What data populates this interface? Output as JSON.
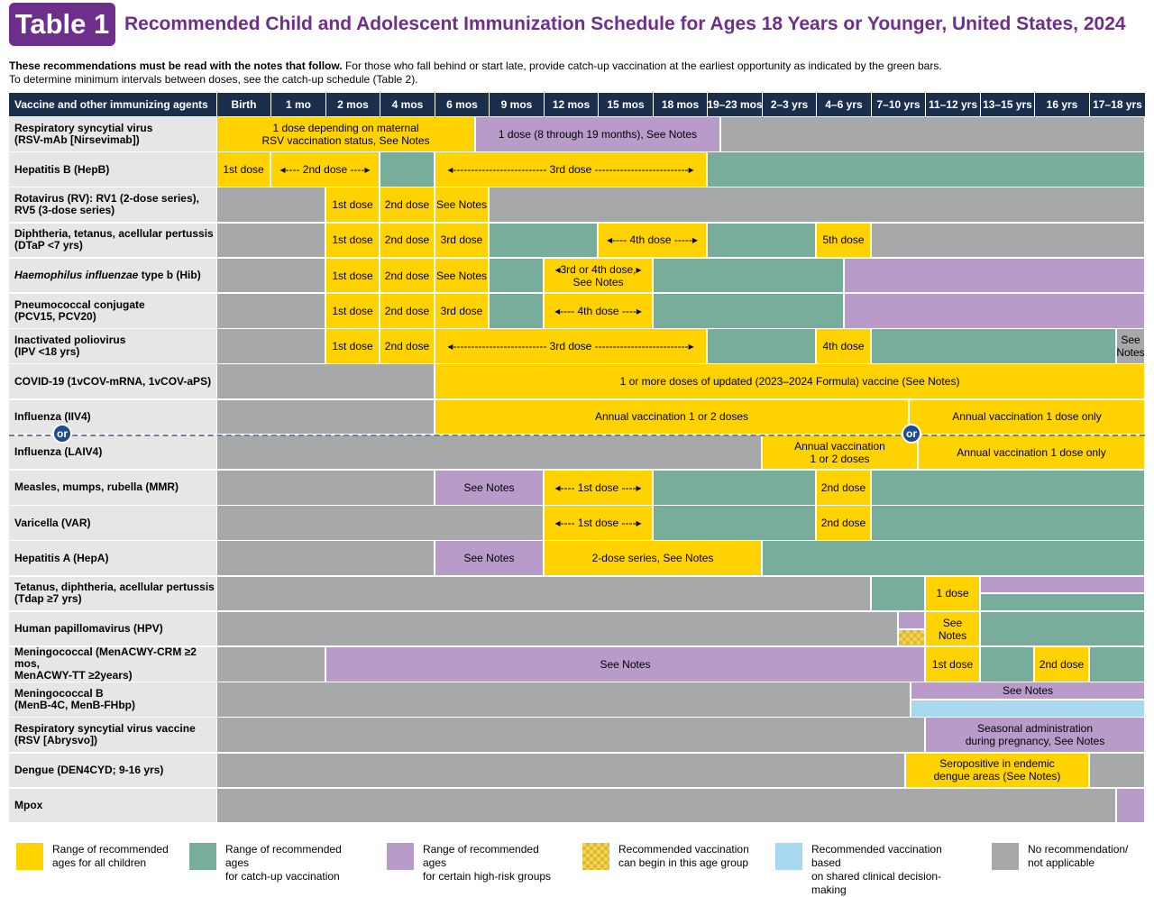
{
  "header": {
    "badge": "Table 1",
    "title": "Recommended Child and Adolescent Immunization Schedule for Ages 18 Years or Younger, United States, 2024"
  },
  "intro": {
    "bold": "These recommendations must be read with the notes that follow.",
    "line1_rest": " For those who fall behind or start late, provide catch-up vaccination at the earliest opportunity as indicated by the green bars.",
    "line2": "To determine minimum intervals between doses, see the catch-up schedule (Table 2)."
  },
  "columns": [
    "Vaccine and other immunizing agents",
    "Birth",
    "1 mo",
    "2 mos",
    "4 mos",
    "6 mos",
    "9 mos",
    "12 mos",
    "15 mos",
    "18 mos",
    "19–23 mos",
    "2–3 yrs",
    "4–6 yrs",
    "7–10 yrs",
    "11–12 yrs",
    "13–15 yrs",
    "16 yrs",
    "17–18 yrs"
  ],
  "colors": {
    "recommended_all": "#ffd200",
    "catch_up": "#79ad9b",
    "high_risk": "#b89bc9",
    "shared_decision": "#a8d8f0",
    "no_recommendation": "#a7a8aa",
    "header_bg": "#1b2f4d",
    "title_purple": "#6d2e8c"
  },
  "or_label": "or",
  "rows": [
    {
      "name": "Respiratory syncytial virus",
      "name2": "(RSV-mAb [Nirsevimab])",
      "segments": [
        {
          "k": "y",
          "text": "1 dose depending on maternal",
          "text2": "RSV vaccination status, See Notes"
        },
        {
          "k": "p",
          "text": "1 dose (8 through 19 months), See Notes"
        },
        {
          "k": "n"
        }
      ]
    },
    {
      "name": "Hepatitis B (HepB)",
      "segments": [
        {
          "k": "y",
          "text": "1st dose"
        },
        {
          "k": "y",
          "text": "◂---- 2nd dose ----▸"
        },
        {
          "k": "g"
        },
        {
          "k": "y",
          "text": "◂-------------------------- 3rd dose --------------------------▸"
        },
        {
          "k": "g"
        }
      ]
    },
    {
      "name": "Rotavirus (RV): RV1 (2-dose series),",
      "name2": "RV5 (3-dose series)",
      "segments": [
        {
          "k": "n"
        },
        {
          "k": "y",
          "text": "1st dose"
        },
        {
          "k": "y",
          "text": "2nd dose"
        },
        {
          "k": "y",
          "text": "See Notes"
        },
        {
          "k": "n"
        }
      ]
    },
    {
      "name": "Diphtheria, tetanus, acellular pertussis",
      "name2": "(DTaP <7 yrs)",
      "segments": [
        {
          "k": "n"
        },
        {
          "k": "y",
          "text": "1st dose"
        },
        {
          "k": "y",
          "text": "2nd dose"
        },
        {
          "k": "y",
          "text": "3rd dose"
        },
        {
          "k": "g"
        },
        {
          "k": "y",
          "text": "◂---- 4th dose -----▸"
        },
        {
          "k": "g"
        },
        {
          "k": "y",
          "text": "5th dose"
        },
        {
          "k": "n"
        }
      ]
    },
    {
      "name": "Haemophilus influenzae",
      "name_rest": " type b (Hib)",
      "segments": [
        {
          "k": "n"
        },
        {
          "k": "y",
          "text": "1st dose"
        },
        {
          "k": "y",
          "text": "2nd dose"
        },
        {
          "k": "y",
          "text": "See Notes"
        },
        {
          "k": "g"
        },
        {
          "k": "y",
          "text": "◂3rd or 4th dose,▸",
          "text2": "See Notes"
        },
        {
          "k": "g"
        },
        {
          "k": "p"
        }
      ]
    },
    {
      "name": "Pneumococcal conjugate",
      "name2": "(PCV15, PCV20)",
      "segments": [
        {
          "k": "n"
        },
        {
          "k": "y",
          "text": "1st dose"
        },
        {
          "k": "y",
          "text": "2nd dose"
        },
        {
          "k": "y",
          "text": "3rd dose"
        },
        {
          "k": "g"
        },
        {
          "k": "y",
          "text": "◂---- 4th dose ----▸"
        },
        {
          "k": "g"
        },
        {
          "k": "p"
        }
      ]
    },
    {
      "name": "Inactivated poliovirus",
      "name2": "(IPV <18 yrs)",
      "segments": [
        {
          "k": "n"
        },
        {
          "k": "y",
          "text": "1st dose"
        },
        {
          "k": "y",
          "text": "2nd dose"
        },
        {
          "k": "y",
          "text": "◂-------------------------- 3rd dose --------------------------▸"
        },
        {
          "k": "g"
        },
        {
          "k": "y",
          "text": "4th dose"
        },
        {
          "k": "g"
        },
        {
          "k": "n",
          "text": "See",
          "text2": "Notes"
        }
      ]
    },
    {
      "name": "COVID-19 (1vCOV-mRNA, 1vCOV-aPS)",
      "segments": [
        {
          "k": "n"
        },
        {
          "k": "y",
          "text": "1 or more doses of updated (2023–2024 Formula) vaccine (See Notes)"
        }
      ]
    },
    {
      "name": "Influenza (IIV4)",
      "segments": [
        {
          "k": "n"
        },
        {
          "k": "y",
          "text": "Annual vaccination 1 or 2 doses"
        },
        {
          "k": "y",
          "text": "Annual vaccination 1 dose only"
        }
      ]
    },
    {
      "name": "Influenza (LAIV4)",
      "segments": [
        {
          "k": "n"
        },
        {
          "k": "y",
          "text": "Annual vaccination",
          "text2": "1 or 2 doses"
        },
        {
          "k": "y",
          "text": "Annual vaccination 1 dose only"
        }
      ]
    },
    {
      "name": "Measles, mumps, rubella (MMR)",
      "segments": [
        {
          "k": "n"
        },
        {
          "k": "p",
          "text": "See Notes"
        },
        {
          "k": "y",
          "text": "◂---- 1st dose ----▸"
        },
        {
          "k": "g"
        },
        {
          "k": "y",
          "text": "2nd dose"
        },
        {
          "k": "g"
        }
      ]
    },
    {
      "name": "Varicella (VAR)",
      "segments": [
        {
          "k": "n"
        },
        {
          "k": "y",
          "text": "◂---- 1st dose ----▸"
        },
        {
          "k": "g"
        },
        {
          "k": "y",
          "text": "2nd dose"
        },
        {
          "k": "g"
        }
      ]
    },
    {
      "name": "Hepatitis A (HepA)",
      "segments": [
        {
          "k": "n"
        },
        {
          "k": "p",
          "text": "See Notes"
        },
        {
          "k": "y",
          "text": "2-dose series, See Notes"
        },
        {
          "k": "g"
        }
      ]
    },
    {
      "name": "Tetanus, diphtheria, acellular pertussis",
      "name2": "(Tdap ≥7 yrs)",
      "segments": [
        {
          "k": "n"
        },
        {
          "k": "g"
        },
        {
          "k": "y",
          "text": "1 dose"
        },
        {
          "k": "p"
        },
        {
          "k": "g"
        }
      ]
    },
    {
      "name": "Human papillomavirus (HPV)",
      "segments": [
        {
          "k": "n"
        },
        {
          "k": "p"
        },
        {
          "k": "h"
        },
        {
          "k": "y",
          "text": "See",
          "text2": "Notes"
        },
        {
          "k": "g"
        }
      ]
    },
    {
      "name": "Meningococcal (MenACWY-CRM ≥2 mos,",
      "name2": "MenACWY-TT ≥2years)",
      "segments": [
        {
          "k": "n"
        },
        {
          "k": "p",
          "text": "See Notes"
        },
        {
          "k": "y",
          "text": "1st dose"
        },
        {
          "k": "g"
        },
        {
          "k": "y",
          "text": "2nd dose"
        },
        {
          "k": "g"
        }
      ]
    },
    {
      "name": "Meningococcal B",
      "name2": "(MenB-4C, MenB-FHbp)",
      "segments": [
        {
          "k": "n"
        },
        {
          "k": "p",
          "text": "See Notes"
        },
        {
          "k": "b"
        }
      ]
    },
    {
      "name": "Respiratory syncytial virus vaccine",
      "name2": "(RSV [Abrysvo])",
      "segments": [
        {
          "k": "n"
        },
        {
          "k": "p",
          "text": "Seasonal administration",
          "text2": "during pregnancy, See Notes"
        }
      ]
    },
    {
      "name": "Dengue (DEN4CYD; 9-16 yrs)",
      "segments": [
        {
          "k": "n"
        },
        {
          "k": "y",
          "text": "Seropositive in endemic",
          "text2": "dengue areas (See Notes)"
        },
        {
          "k": "n"
        }
      ]
    },
    {
      "name": "Mpox",
      "segments": [
        {
          "k": "n"
        },
        {
          "k": "p"
        }
      ]
    }
  ],
  "legend": [
    {
      "k": "y",
      "line1": "Range of recommended",
      "line2": "ages for all children"
    },
    {
      "k": "g",
      "line1": "Range of recommended ages",
      "line2": "for catch-up vaccination"
    },
    {
      "k": "p",
      "line1": "Range of recommended ages",
      "line2": "for certain high-risk groups"
    },
    {
      "k": "h",
      "line1": "Recommended vaccination",
      "line2": "can begin in this age group"
    },
    {
      "k": "b",
      "line1": "Recommended vaccination based",
      "line2": "on shared clinical decision-making"
    },
    {
      "k": "n",
      "line1": "No recommendation/",
      "line2": "not applicable"
    }
  ]
}
